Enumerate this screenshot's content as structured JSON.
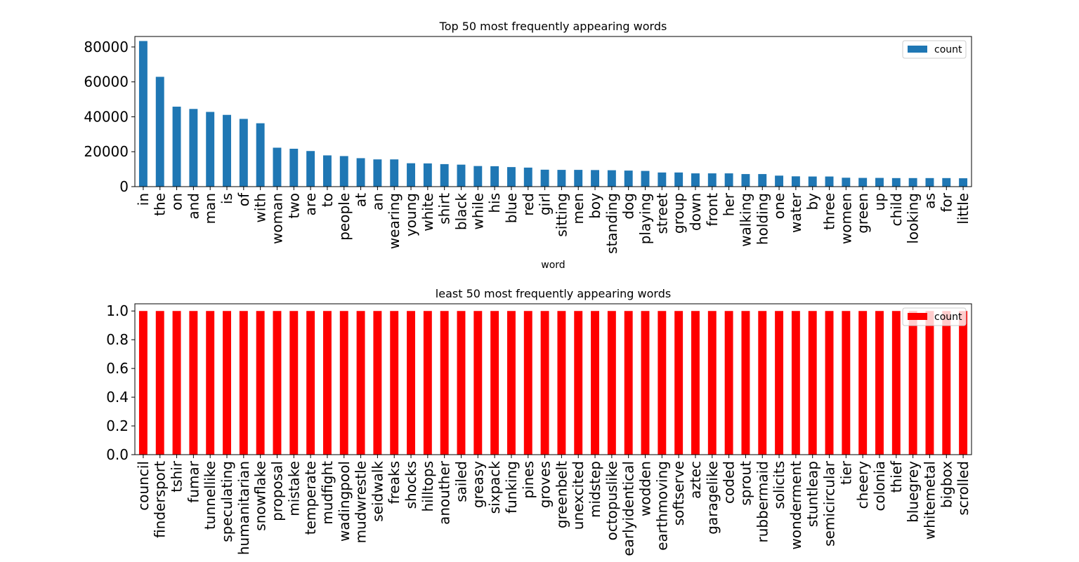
{
  "chart_data": [
    {
      "type": "bar",
      "title": "Top 50 most frequently appearing words",
      "xlabel": "word",
      "ylabel": "",
      "ylim": [
        0,
        86000
      ],
      "yticks": [
        0,
        20000,
        40000,
        60000,
        80000
      ],
      "grid": false,
      "legend": {
        "position": "top-right",
        "entries": [
          "count"
        ]
      },
      "categories": [
        "in",
        "the",
        "on",
        "and",
        "man",
        "is",
        "of",
        "with",
        "woman",
        "two",
        "are",
        "to",
        "people",
        "at",
        "an",
        "wearing",
        "young",
        "white",
        "shirt",
        "black",
        "while",
        "his",
        "blue",
        "red",
        "girl",
        "sitting",
        "men",
        "boy",
        "standing",
        "dog",
        "playing",
        "street",
        "group",
        "down",
        "front",
        "her",
        "walking",
        "holding",
        "one",
        "water",
        "by",
        "three",
        "women",
        "green",
        "up",
        "child",
        "looking",
        "as",
        "for",
        "little"
      ],
      "series": [
        {
          "name": "count",
          "color": "#1f77b4",
          "values": [
            83400,
            62900,
            45800,
            44500,
            42800,
            41100,
            38800,
            36300,
            22300,
            21700,
            20400,
            17900,
            17500,
            16300,
            15600,
            15600,
            13400,
            13300,
            12900,
            12600,
            11800,
            11700,
            11200,
            10900,
            9700,
            9600,
            9600,
            9500,
            9400,
            9200,
            9000,
            8100,
            8100,
            7600,
            7600,
            7600,
            7200,
            7200,
            6300,
            5900,
            5800,
            5800,
            5100,
            5000,
            5000,
            4900,
            4900,
            4900,
            4900,
            4800
          ]
        }
      ]
    },
    {
      "type": "bar",
      "title": "least 50 most frequently appearing words",
      "xlabel": "",
      "ylabel": "",
      "ylim": [
        0,
        1.05
      ],
      "yticks": [
        0.0,
        0.2,
        0.4,
        0.6,
        0.8,
        1.0
      ],
      "ytick_labels": [
        "0.0",
        "0.2",
        "0.4",
        "0.6",
        "0.8",
        "1.0"
      ],
      "grid": false,
      "legend": {
        "position": "top-right",
        "entries": [
          "count"
        ]
      },
      "categories": [
        "council",
        "findersport",
        "tshir",
        "fumar",
        "tunnellike",
        "speculating",
        "humanitarian",
        "snowflake",
        "proposal",
        "mistake",
        "temperate",
        "mudfight",
        "wadingpool",
        "mudwrestle",
        "seidwalk",
        "freaks",
        "shocks",
        "hilltops",
        "anouther",
        "sailed",
        "greasy",
        "sixpack",
        "funking",
        "pines",
        "groves",
        "greenbelt",
        "unexcited",
        "midstep",
        "octopuslike",
        "earlyidentical",
        "wodden",
        "earthmoving",
        "softserve",
        "aztec",
        "garagelike",
        "coded",
        "sprout",
        "rubbermaid",
        "solicits",
        "wonderment",
        "stuntleap",
        "semicircular",
        "tier",
        "cheery",
        "colonia",
        "thief",
        "bluegrey",
        "whitemetal",
        "bigbox",
        "scrolled"
      ],
      "series": [
        {
          "name": "count",
          "color": "#ff0000",
          "values": [
            1,
            1,
            1,
            1,
            1,
            1,
            1,
            1,
            1,
            1,
            1,
            1,
            1,
            1,
            1,
            1,
            1,
            1,
            1,
            1,
            1,
            1,
            1,
            1,
            1,
            1,
            1,
            1,
            1,
            1,
            1,
            1,
            1,
            1,
            1,
            1,
            1,
            1,
            1,
            1,
            1,
            1,
            1,
            1,
            1,
            1,
            1,
            1,
            1,
            1
          ]
        }
      ]
    }
  ]
}
